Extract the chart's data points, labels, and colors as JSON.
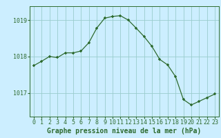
{
  "x": [
    0,
    1,
    2,
    3,
    4,
    5,
    6,
    7,
    8,
    9,
    10,
    11,
    12,
    13,
    14,
    15,
    16,
    17,
    18,
    19,
    20,
    21,
    22,
    23
  ],
  "y": [
    1017.75,
    1017.87,
    1018.0,
    1017.97,
    1018.1,
    1018.1,
    1018.15,
    1018.38,
    1018.78,
    1019.05,
    1019.1,
    1019.12,
    1019.0,
    1018.78,
    1018.55,
    1018.28,
    1017.92,
    1017.77,
    1017.45,
    1016.82,
    1016.67,
    1016.77,
    1016.87,
    1016.97
  ],
  "line_color": "#2d6a2d",
  "marker_color": "#2d6a2d",
  "bg_color": "#cceeff",
  "grid_color": "#99cccc",
  "tick_color": "#2d6a2d",
  "xlabel_label": "Graphe pression niveau de la mer (hPa)",
  "xlabel_color": "#2d6a2d",
  "yticks": [
    1017,
    1018,
    1019
  ],
  "ylim": [
    1016.35,
    1019.38
  ],
  "xlim": [
    -0.5,
    23.5
  ],
  "xticks": [
    0,
    1,
    2,
    3,
    4,
    5,
    6,
    7,
    8,
    9,
    10,
    11,
    12,
    13,
    14,
    15,
    16,
    17,
    18,
    19,
    20,
    21,
    22,
    23
  ],
  "tick_fontsize": 6.0,
  "label_fontsize": 7.0
}
